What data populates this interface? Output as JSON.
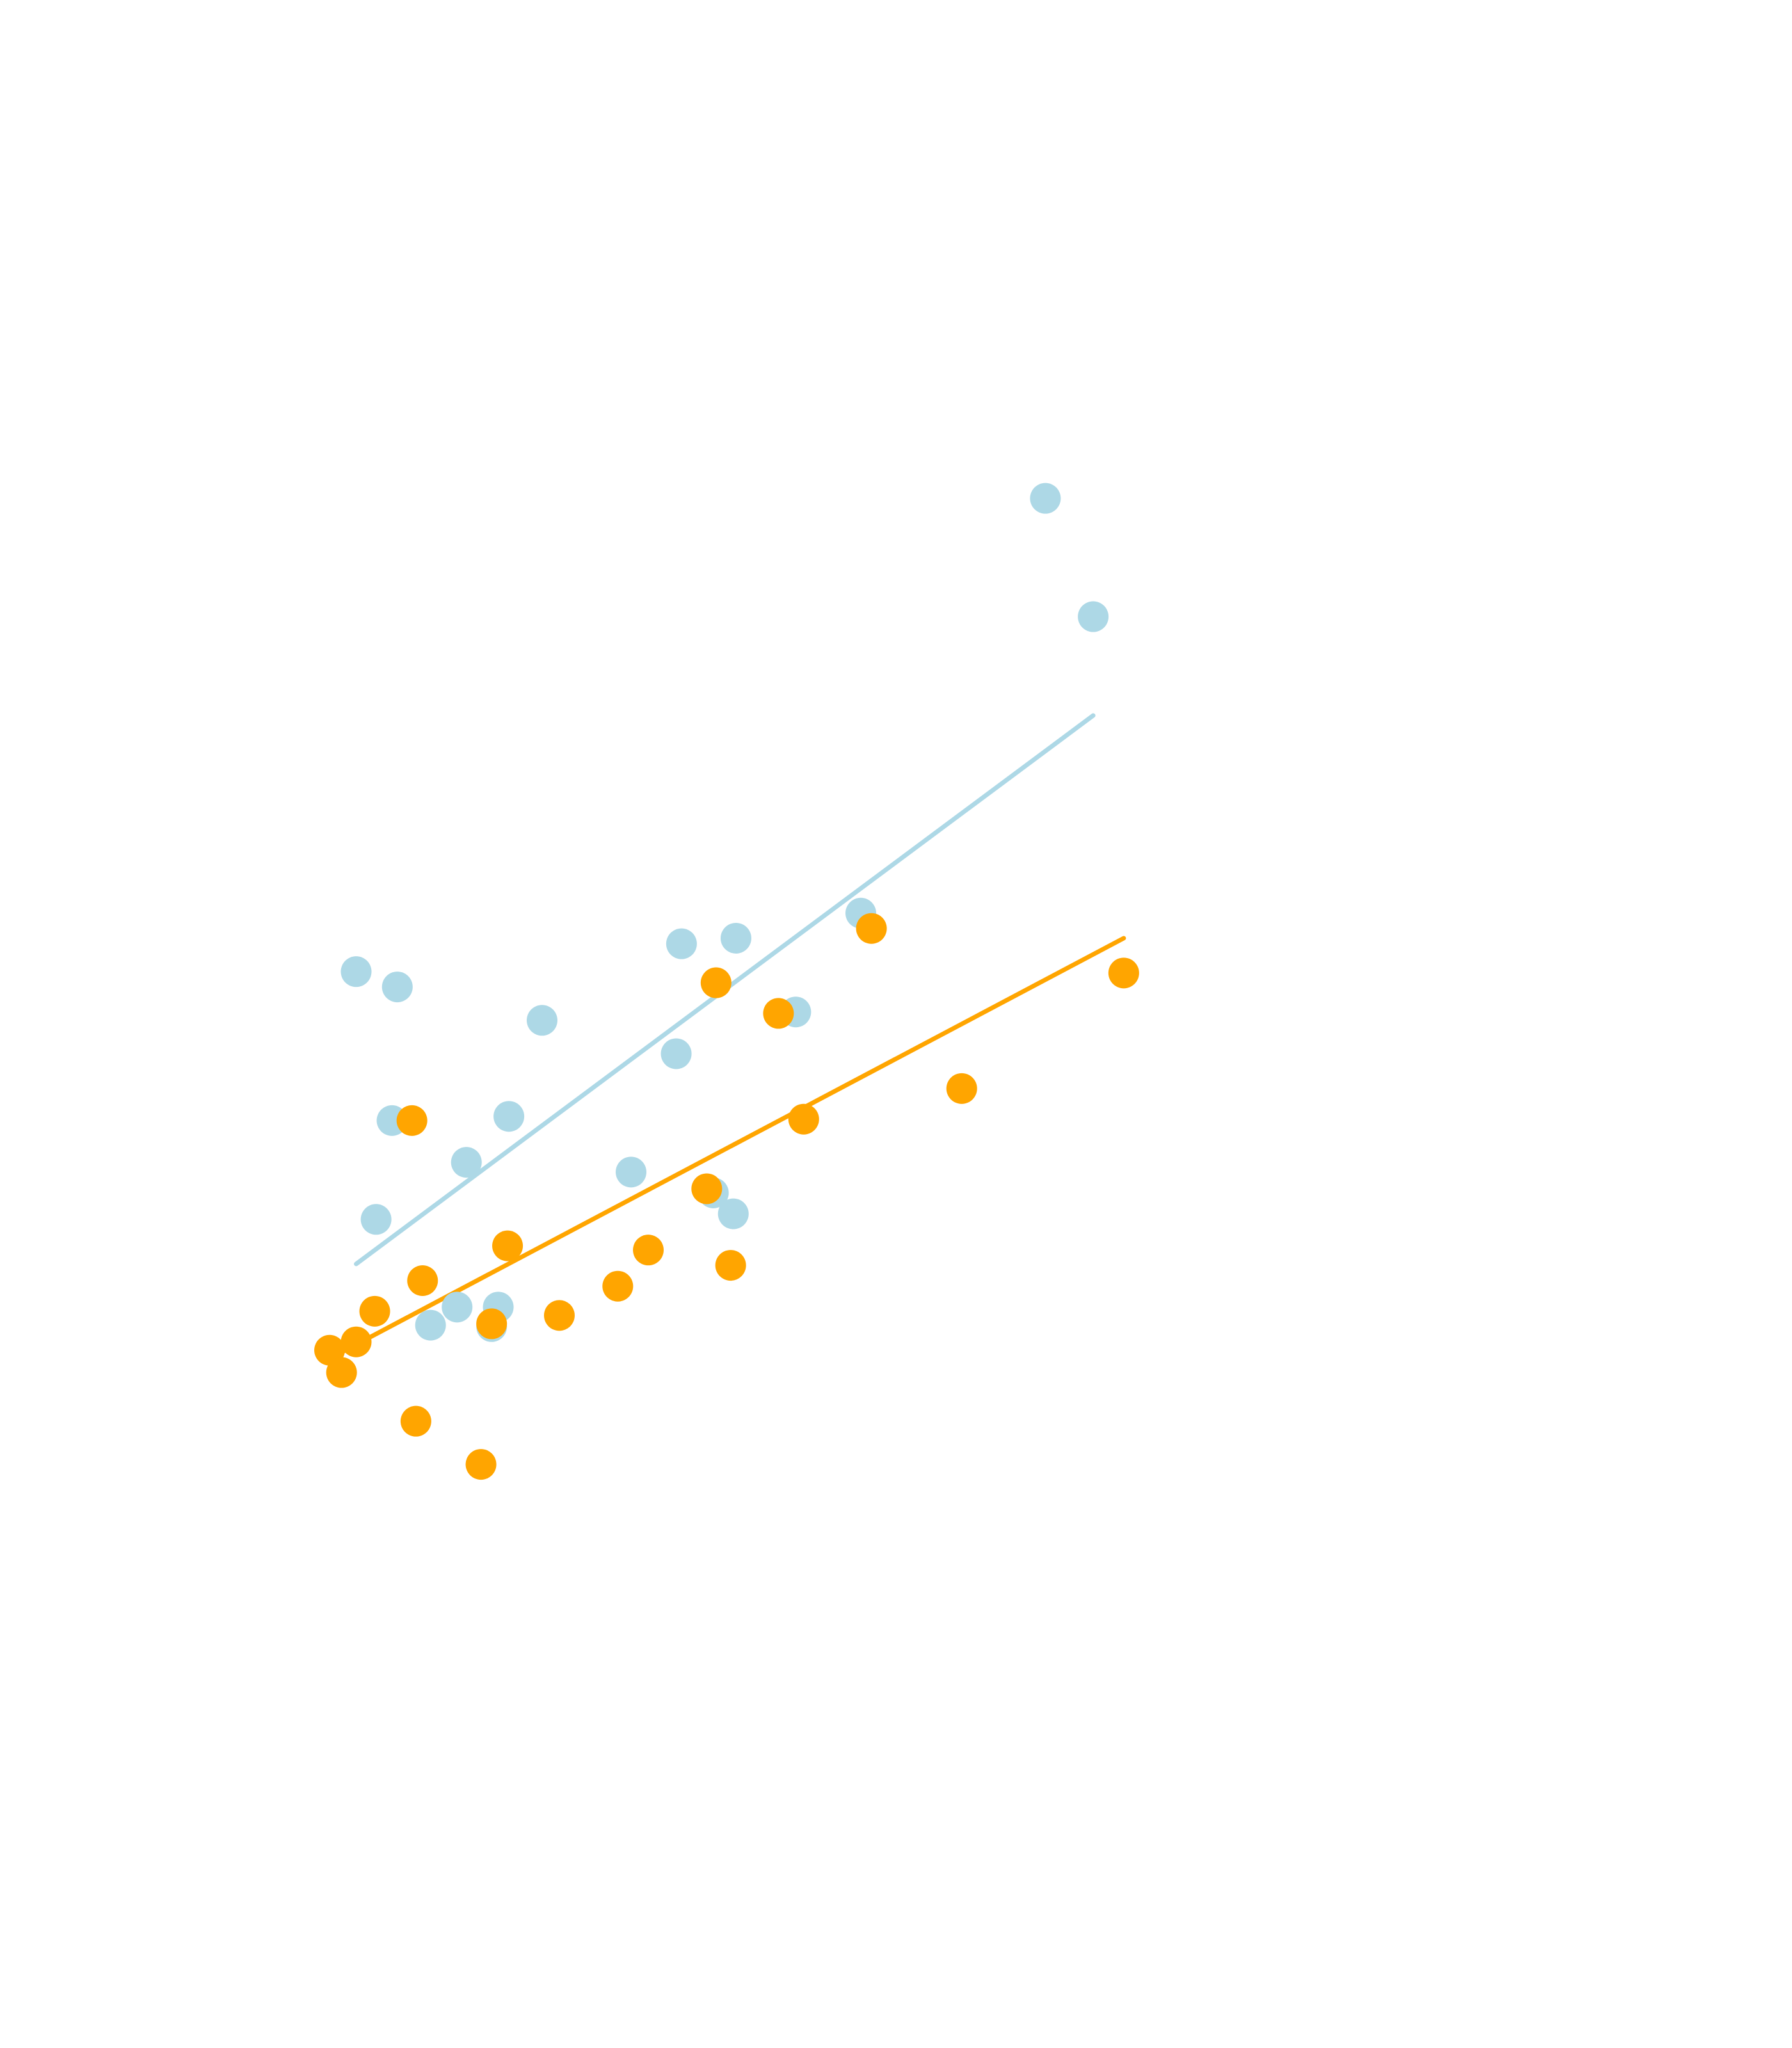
{
  "chart_data": {
    "type": "scatter",
    "title": "",
    "xlabel": "",
    "ylabel": "",
    "grid": false,
    "xlim": [
      0,
      100
    ],
    "ylim": [
      0,
      100
    ],
    "series": [
      {
        "color": "#add8e6",
        "points": [
          {
            "x": 2.0,
            "y": 46.2
          },
          {
            "x": 3.5,
            "y": 28.4
          },
          {
            "x": 4.7,
            "y": 35.5
          },
          {
            "x": 5.1,
            "y": 45.1
          },
          {
            "x": 7.6,
            "y": 20.8
          },
          {
            "x": 9.6,
            "y": 22.1
          },
          {
            "x": 10.3,
            "y": 32.5
          },
          {
            "x": 12.2,
            "y": 20.7
          },
          {
            "x": 12.7,
            "y": 22.1
          },
          {
            "x": 13.5,
            "y": 35.8
          },
          {
            "x": 16.0,
            "y": 42.7
          },
          {
            "x": 22.7,
            "y": 31.8
          },
          {
            "x": 26.1,
            "y": 40.3
          },
          {
            "x": 26.5,
            "y": 48.2
          },
          {
            "x": 28.9,
            "y": 30.3
          },
          {
            "x": 30.4,
            "y": 28.8
          },
          {
            "x": 30.6,
            "y": 48.6
          },
          {
            "x": 35.1,
            "y": 43.3
          },
          {
            "x": 40.0,
            "y": 50.4
          },
          {
            "x": 53.9,
            "y": 80.2
          },
          {
            "x": 57.5,
            "y": 71.7
          }
        ],
        "trend": [
          [
            2.0,
            25.2
          ],
          [
            57.5,
            64.6
          ]
        ]
      },
      {
        "color": "#ffa500",
        "points": [
          {
            "x": 0.0,
            "y": 19.0
          },
          {
            "x": 0.9,
            "y": 17.4
          },
          {
            "x": 2.0,
            "y": 19.6
          },
          {
            "x": 3.4,
            "y": 21.8
          },
          {
            "x": 6.2,
            "y": 35.5
          },
          {
            "x": 6.5,
            "y": 13.9
          },
          {
            "x": 7.0,
            "y": 24.0
          },
          {
            "x": 11.4,
            "y": 10.8
          },
          {
            "x": 12.2,
            "y": 20.9
          },
          {
            "x": 13.4,
            "y": 26.5
          },
          {
            "x": 17.3,
            "y": 21.5
          },
          {
            "x": 21.7,
            "y": 23.6
          },
          {
            "x": 24.0,
            "y": 26.2
          },
          {
            "x": 28.4,
            "y": 30.6
          },
          {
            "x": 29.1,
            "y": 45.4
          },
          {
            "x": 30.2,
            "y": 25.1
          },
          {
            "x": 33.8,
            "y": 43.2
          },
          {
            "x": 35.7,
            "y": 35.6
          },
          {
            "x": 40.8,
            "y": 49.3
          },
          {
            "x": 47.6,
            "y": 37.8
          },
          {
            "x": 59.8,
            "y": 46.1
          }
        ],
        "trend": [
          [
            0.0,
            18.4
          ],
          [
            59.8,
            48.6
          ]
        ]
      }
    ]
  }
}
